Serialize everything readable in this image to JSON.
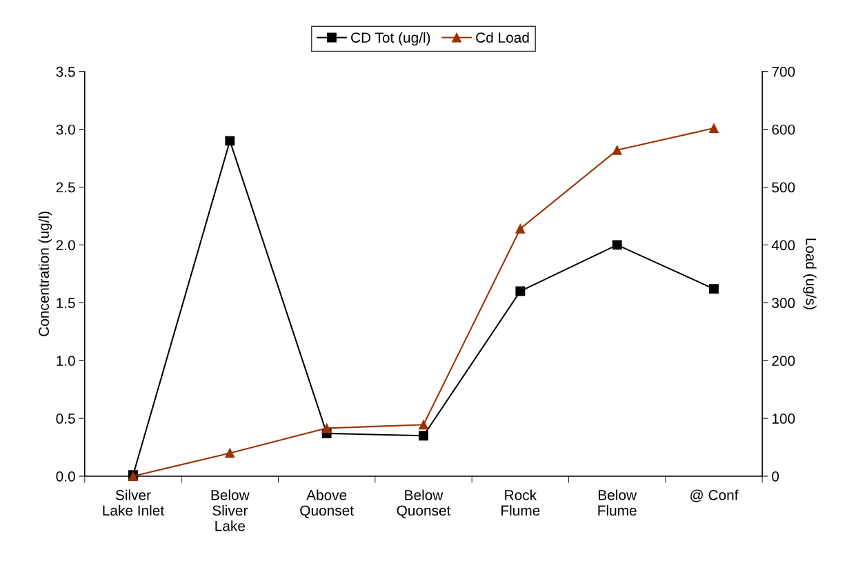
{
  "chart_data": {
    "type": "line",
    "categories": [
      "Silver\nLake Inlet",
      "Below\nSliver\nLake",
      "Above\nQuonset",
      "Below\nQuonset",
      "Rock\nFlume",
      "Below\nFlume",
      "@ Conf"
    ],
    "series": [
      {
        "name": "CD Tot (ug/l)",
        "color": "#000000",
        "marker": "square",
        "values": [
          0.01,
          2.9,
          0.37,
          0.35,
          1.6,
          2.0,
          1.62
        ]
      },
      {
        "name": "Cd Load",
        "color": "#993300",
        "marker": "triangle",
        "axis": "y2",
        "values": [
          0,
          40,
          83,
          89,
          428,
          564,
          602
        ]
      }
    ],
    "ylabel": "Concentration (ug/l)",
    "y2label": "Load (ug/s)",
    "ylim": [
      0,
      3.5
    ],
    "yticks": [
      {
        "value": 0,
        "label": "0.0"
      },
      {
        "value": 0.5,
        "label": "0.5"
      },
      {
        "value": 1,
        "label": "1.0"
      },
      {
        "value": 1.5,
        "label": "1.5"
      },
      {
        "value": 2,
        "label": "2.0"
      },
      {
        "value": 2.5,
        "label": "2.5"
      },
      {
        "value": 3,
        "label": "3.0"
      },
      {
        "value": 3.5,
        "label": "3.5"
      }
    ],
    "y2lim": [
      0,
      700
    ],
    "y2ticks": [
      0,
      100,
      200,
      300,
      400,
      500,
      600,
      700
    ],
    "legend": "top",
    "grid": false,
    "line_style": "solid"
  }
}
